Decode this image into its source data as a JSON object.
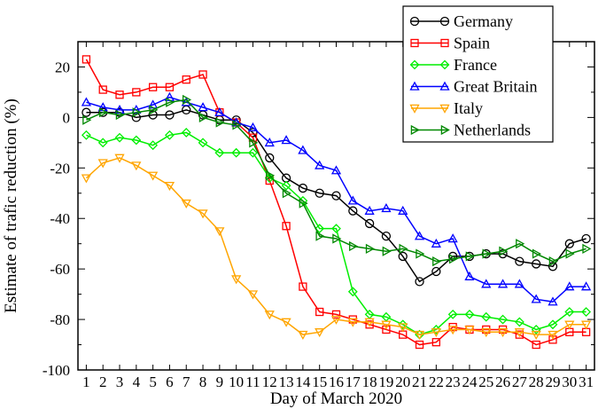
{
  "chart_data": {
    "type": "line",
    "title": "",
    "xlabel": "Day of March 2020",
    "ylabel": "Estimate of trafic reduction (%)",
    "xlim": [
      0.5,
      31.5
    ],
    "ylim": [
      -100,
      30
    ],
    "xticks": [
      1,
      2,
      3,
      4,
      5,
      6,
      7,
      8,
      9,
      10,
      11,
      12,
      13,
      14,
      15,
      16,
      17,
      18,
      19,
      20,
      21,
      22,
      23,
      24,
      25,
      26,
      27,
      28,
      29,
      30,
      31
    ],
    "yticks": [
      -100,
      -80,
      -60,
      -40,
      -20,
      0,
      20
    ],
    "grid": false,
    "legend_position": "top-right",
    "x": [
      1,
      2,
      3,
      4,
      5,
      6,
      7,
      8,
      9,
      10,
      11,
      12,
      13,
      14,
      15,
      16,
      17,
      18,
      19,
      20,
      21,
      22,
      23,
      24,
      25,
      26,
      27,
      28,
      29,
      30,
      31
    ],
    "series": [
      {
        "name": "Germany",
        "color": "#000000",
        "marker": "circle",
        "values": [
          2,
          2,
          2,
          0,
          1,
          1,
          3,
          1,
          -1,
          -1,
          -6,
          -16,
          -24,
          -28,
          -30,
          -31,
          -37,
          -42,
          -47,
          -55,
          -65,
          -61,
          -55,
          -55,
          -54,
          -54,
          -57,
          -58,
          -59,
          -50,
          -48
        ]
      },
      {
        "name": "Spain",
        "color": "#ff0000",
        "marker": "square",
        "values": [
          23,
          11,
          9,
          10,
          12,
          12,
          15,
          17,
          2,
          -2,
          -8,
          -25,
          -43,
          -67,
          -77,
          -78,
          -80,
          -82,
          -84,
          -86,
          -90,
          -89,
          -83,
          -84,
          -84,
          -84,
          -86,
          -90,
          -88,
          -85,
          -85
        ]
      },
      {
        "name": "France",
        "color": "#00ee00",
        "marker": "diamond",
        "values": [
          -7,
          -10,
          -8,
          -9,
          -11,
          -7,
          -6,
          -10,
          -14,
          -14,
          -14,
          -24,
          -27,
          -33,
          -44,
          -44,
          -69,
          -78,
          -79,
          -82,
          -86,
          -84,
          -78,
          -78,
          -79,
          -80,
          -81,
          -84,
          -82,
          -77,
          -77
        ]
      },
      {
        "name": "Great Britain",
        "color": "#0000ff",
        "marker": "triangle-up",
        "values": [
          6,
          4,
          3,
          3,
          5,
          8,
          6,
          4,
          2,
          -2,
          -4,
          -10,
          -9,
          -13,
          -19,
          -21,
          -33,
          -37,
          -36,
          -37,
          -47,
          -50,
          -48,
          -63,
          -66,
          -66,
          -66,
          -72,
          -73,
          -67,
          -67
        ]
      },
      {
        "name": "Italy",
        "color": "#ffa500",
        "marker": "triangle-down",
        "values": [
          -24,
          -18,
          -16,
          -19,
          -23,
          -27,
          -34,
          -38,
          -45,
          -64,
          -70,
          -78,
          -81,
          -86,
          -85,
          -80,
          -81,
          -81,
          -82,
          -83,
          -86,
          -85,
          -84,
          -84,
          -85,
          -85,
          -85,
          -86,
          -86,
          -82,
          -82
        ]
      },
      {
        "name": "Netherlands",
        "color": "#008800",
        "marker": "triangle-right",
        "values": [
          -1,
          2,
          1,
          2,
          3,
          6,
          7,
          0,
          -2,
          -3,
          -10,
          -23,
          -30,
          -34,
          -47,
          -48,
          -51,
          -52,
          -53,
          -52,
          -54,
          -57,
          -56,
          -55,
          -54,
          -53,
          -50,
          -54,
          -57,
          -54,
          -52
        ]
      }
    ]
  }
}
